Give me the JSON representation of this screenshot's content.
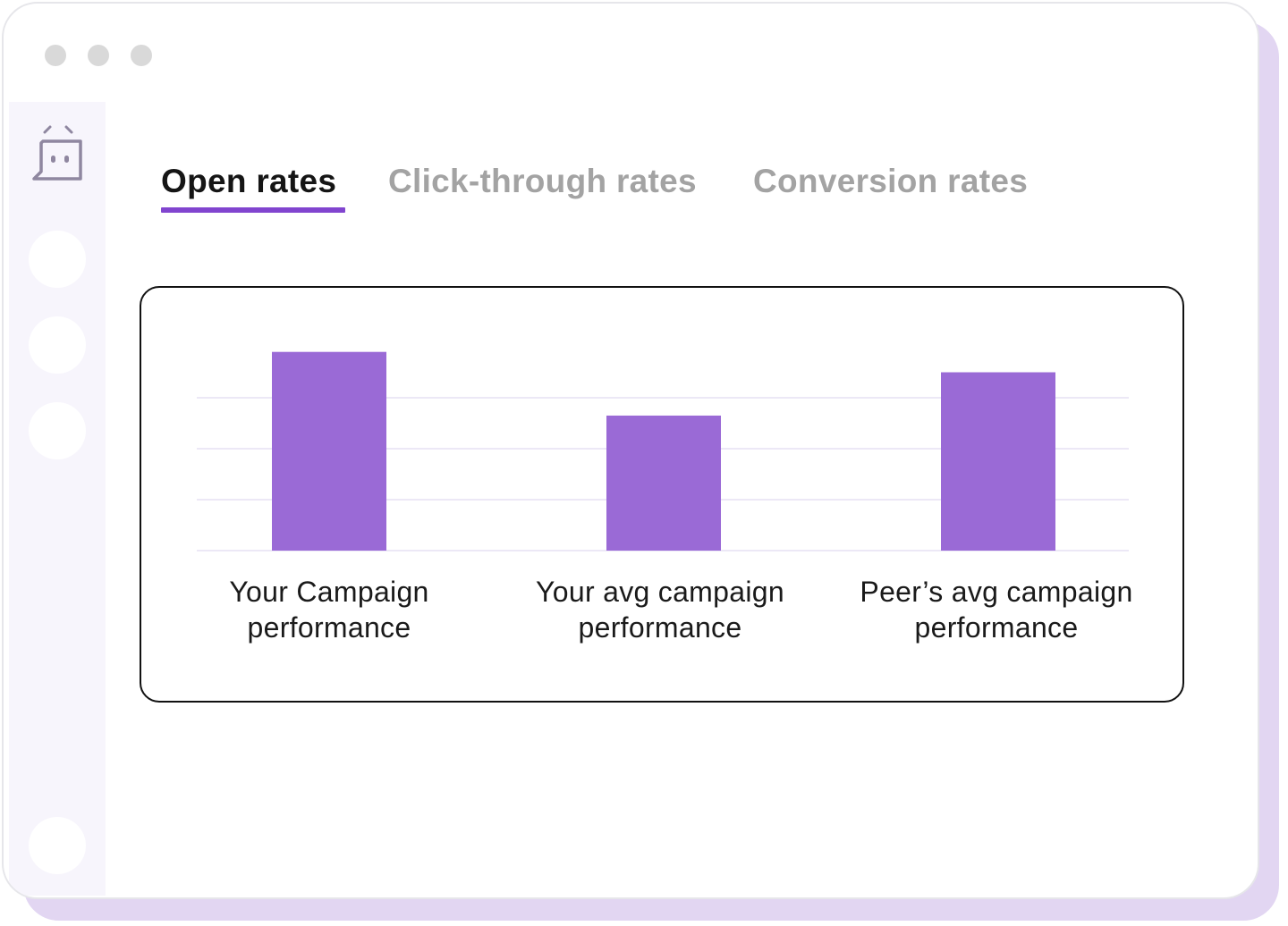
{
  "tabs": [
    {
      "label": "Open rates",
      "active": true
    },
    {
      "label": "Click-through rates",
      "active": false
    },
    {
      "label": "Conversion rates",
      "active": false
    }
  ],
  "sidebar": {
    "logo_icon": "chat-bot-icon",
    "nav_items": 4
  },
  "colors": {
    "accent": "#8145cf",
    "bar": "#9a6ad6",
    "gridline": "#ece8f6",
    "sidebar_bg": "#f7f5fc",
    "shadow": "#e2d6f2"
  },
  "chart_data": {
    "type": "bar",
    "categories": [
      "Your Campaign performance",
      "Your avg campaign performance",
      "Peer’s avg campaign performance"
    ],
    "values": [
      3.9,
      2.65,
      3.5
    ],
    "ylim": [
      0,
      4
    ],
    "grid": true,
    "title": "",
    "xlabel": "",
    "ylabel": ""
  }
}
